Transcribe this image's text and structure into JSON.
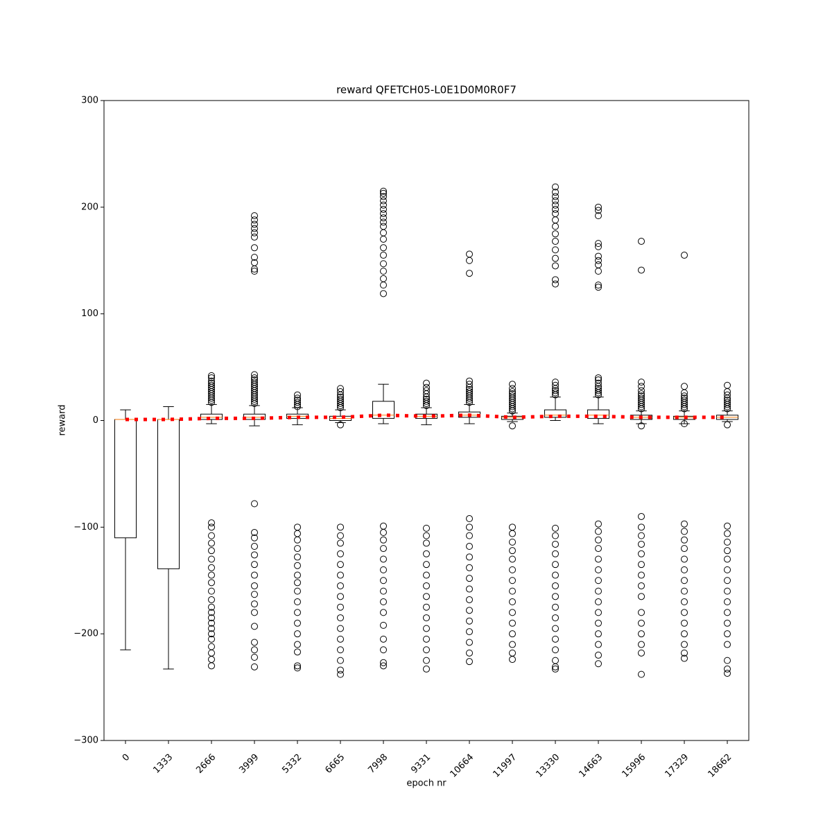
{
  "chart_data": {
    "type": "box",
    "title": "reward QFETCH05-L0E1D0M0R0F7",
    "x_label": "epoch nr",
    "y_label": "reward",
    "categories": [
      "0",
      "1333",
      "2666",
      "3999",
      "5332",
      "6665",
      "7998",
      "9331",
      "10664",
      "11997",
      "13330",
      "14663",
      "15996",
      "17329",
      "18662"
    ],
    "ylim": [
      -300,
      300
    ],
    "yticks": [
      {
        "value": -300,
        "label": "−300"
      },
      {
        "value": -200,
        "label": "−200"
      },
      {
        "value": -100,
        "label": "−100"
      },
      0,
      100,
      200,
      300
    ],
    "box_color": "#000000",
    "median_color": "#ff7f0e",
    "mean_color": "#ff0000",
    "boxes": [
      {
        "whislo": -215,
        "q1": -110,
        "med": 1,
        "q3": 1,
        "whishi": 10,
        "fliers": []
      },
      {
        "whislo": -233,
        "q1": -139,
        "med": 1,
        "q3": 1,
        "whishi": 13,
        "fliers": []
      },
      {
        "whislo": -3,
        "q1": 1,
        "med": 3,
        "q3": 6,
        "whishi": 15,
        "fliers": [
          17,
          19,
          21,
          23,
          25,
          27,
          29,
          31,
          33,
          35,
          37,
          40,
          42,
          -96,
          -100,
          -108,
          -115,
          -122,
          -130,
          -138,
          -145,
          -152,
          -160,
          -168,
          -175,
          -180,
          -185,
          -190,
          -195,
          -200,
          -205,
          -212,
          -218,
          -224,
          -230
        ]
      },
      {
        "whislo": -5,
        "q1": 1,
        "med": 3,
        "q3": 6,
        "whishi": 14,
        "fliers": [
          16,
          18,
          20,
          22,
          24,
          26,
          28,
          30,
          32,
          34,
          36,
          38,
          40,
          43,
          140,
          142,
          148,
          153,
          162,
          172,
          176,
          180,
          184,
          188,
          192,
          -78,
          -105,
          -110,
          -118,
          -126,
          -135,
          -145,
          -155,
          -163,
          -172,
          -180,
          -193,
          -208,
          -215,
          -222,
          -231
        ]
      },
      {
        "whislo": -4,
        "q1": 2,
        "med": 4,
        "q3": 6,
        "whishi": 12,
        "fliers": [
          13,
          15,
          17,
          19,
          21,
          24,
          -100,
          -106,
          -112,
          -120,
          -128,
          -136,
          -145,
          -152,
          -160,
          -170,
          -180,
          -190,
          -200,
          -210,
          -217,
          -230,
          -232
        ]
      },
      {
        "whislo": -2,
        "q1": 0,
        "med": 2,
        "q3": 4,
        "whishi": 10,
        "fliers": [
          12,
          14,
          16,
          18,
          20,
          22,
          24,
          27,
          30,
          -4,
          -100,
          -108,
          -115,
          -125,
          -135,
          -145,
          -155,
          -165,
          -175,
          -185,
          -195,
          -205,
          -215,
          -225,
          -234,
          -238
        ]
      },
      {
        "whislo": -3,
        "q1": 2,
        "med": 5,
        "q3": 18,
        "whishi": 34,
        "fliers": [
          119,
          127,
          133,
          140,
          147,
          155,
          162,
          170,
          176,
          182,
          186,
          190,
          194,
          198,
          202,
          206,
          210,
          213,
          215,
          -99,
          -105,
          -112,
          -120,
          -130,
          -140,
          -150,
          -160,
          -170,
          -180,
          -192,
          -205,
          -215,
          -227,
          -230
        ]
      },
      {
        "whislo": -4,
        "q1": 2,
        "med": 4,
        "q3": 6,
        "whishi": 12,
        "fliers": [
          14,
          16,
          18,
          20,
          22,
          25,
          28,
          31,
          35,
          -101,
          -108,
          -115,
          -125,
          -135,
          -145,
          -155,
          -165,
          -175,
          -185,
          -195,
          -205,
          -215,
          -225,
          -233
        ]
      },
      {
        "whislo": -3,
        "q1": 3,
        "med": 5,
        "q3": 8,
        "whishi": 15,
        "fliers": [
          17,
          19,
          21,
          23,
          25,
          27,
          29,
          31,
          34,
          37,
          138,
          150,
          156,
          -92,
          -100,
          -108,
          -118,
          -128,
          -138,
          -148,
          -158,
          -168,
          -178,
          -188,
          -198,
          -208,
          -218,
          -226
        ]
      },
      {
        "whislo": -1,
        "q1": 1,
        "med": 3,
        "q3": 4,
        "whishi": 7,
        "fliers": [
          9,
          11,
          13,
          15,
          17,
          19,
          21,
          23,
          25,
          27,
          30,
          34,
          -5,
          -100,
          -106,
          -114,
          -122,
          -130,
          -140,
          -150,
          -160,
          -170,
          -180,
          -190,
          -200,
          -210,
          -218,
          -224
        ]
      },
      {
        "whislo": 0,
        "q1": 3,
        "med": 5,
        "q3": 10,
        "whishi": 22,
        "fliers": [
          24,
          26,
          28,
          30,
          33,
          36,
          128,
          132,
          145,
          152,
          160,
          168,
          175,
          182,
          188,
          194,
          198,
          202,
          206,
          210,
          214,
          219,
          -101,
          -108,
          -116,
          -125,
          -135,
          -145,
          -155,
          -165,
          -175,
          -185,
          -195,
          -205,
          -215,
          -225,
          -231,
          -233
        ]
      },
      {
        "whislo": -3,
        "q1": 2,
        "med": 5,
        "q3": 10,
        "whishi": 22,
        "fliers": [
          24,
          26,
          28,
          30,
          32,
          35,
          38,
          40,
          125,
          127,
          140,
          146,
          150,
          154,
          163,
          166,
          192,
          197,
          200,
          -97,
          -104,
          -112,
          -120,
          -130,
          -140,
          -150,
          -160,
          -170,
          -180,
          -190,
          -200,
          -210,
          -220,
          -228
        ]
      },
      {
        "whislo": -3,
        "q1": 1,
        "med": 3,
        "q3": 5,
        "whishi": 9,
        "fliers": [
          11,
          13,
          15,
          17,
          19,
          21,
          23,
          25,
          28,
          32,
          36,
          -5,
          141,
          168,
          -90,
          -100,
          -108,
          -116,
          -125,
          -135,
          -145,
          -155,
          -165,
          -180,
          -190,
          -200,
          -210,
          -218,
          -238
        ]
      },
      {
        "whislo": -3,
        "q1": 1,
        "med": 3,
        "q3": 4,
        "whishi": 9,
        "fliers": [
          11,
          13,
          15,
          17,
          19,
          21,
          23,
          26,
          32,
          -3,
          155,
          -97,
          -104,
          -112,
          -120,
          -130,
          -140,
          -150,
          -160,
          -170,
          -180,
          -190,
          -200,
          -210,
          -218,
          -223
        ]
      },
      {
        "whislo": -1,
        "q1": 1,
        "med": 3,
        "q3": 5,
        "whishi": 9,
        "fliers": [
          11,
          13,
          15,
          17,
          19,
          21,
          24,
          27,
          33,
          -4,
          -99,
          -106,
          -114,
          -122,
          -130,
          -140,
          -150,
          -160,
          -170,
          -180,
          -190,
          -200,
          -210,
          -225,
          -233,
          -237
        ]
      }
    ],
    "means": [
      1,
      1,
      2,
      2,
      3,
      3,
      5,
      4,
      5,
      3,
      4,
      4,
      3,
      3,
      3
    ]
  }
}
